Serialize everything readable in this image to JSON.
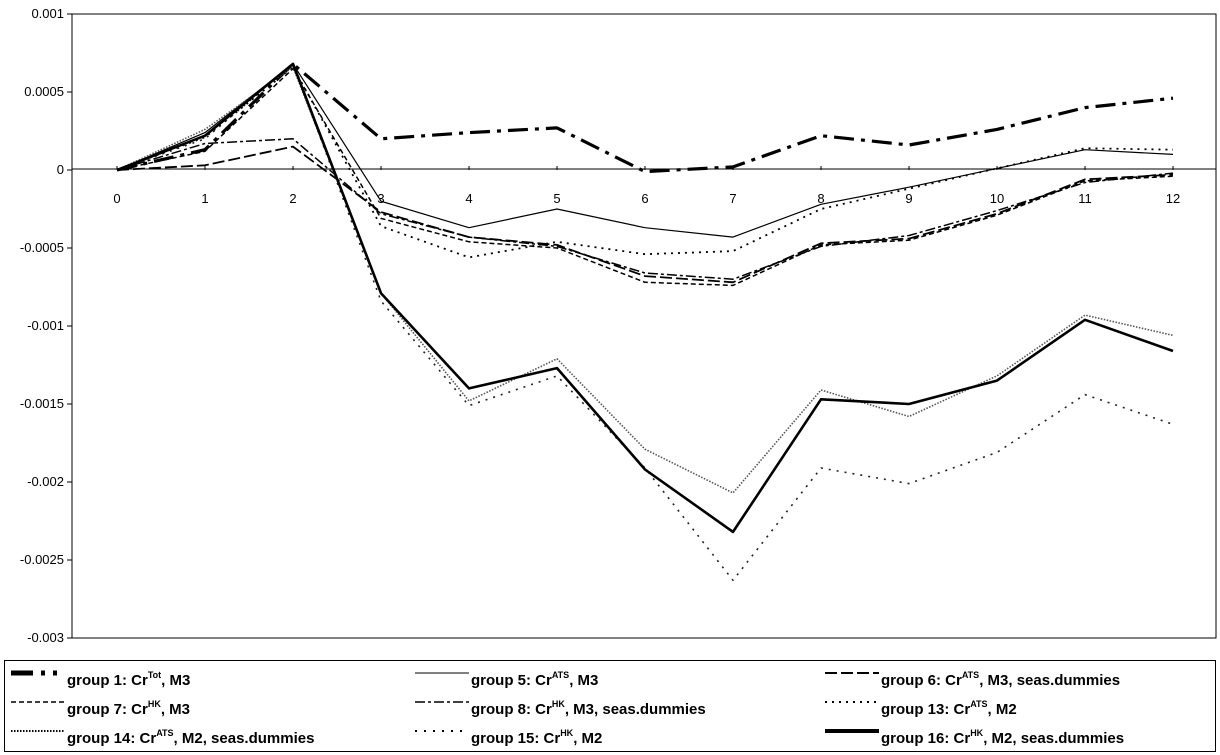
{
  "chart_data": {
    "type": "line",
    "title": "",
    "xlabel": "",
    "ylabel": "",
    "x": [
      0,
      1,
      2,
      3,
      4,
      5,
      6,
      7,
      8,
      9,
      10,
      11,
      12
    ],
    "x_tick_labels": [
      "0",
      "1",
      "2",
      "3",
      "4",
      "5",
      "6",
      "7",
      "8",
      "9",
      "10",
      "11",
      "12"
    ],
    "ylim": [
      -0.003,
      0.001
    ],
    "y_ticks": [
      0.001,
      0.0005,
      0,
      -0.0005,
      -0.001,
      -0.0015,
      -0.002,
      -0.0025,
      -0.003
    ],
    "y_tick_labels": [
      "0.001",
      "0.0005",
      "0",
      "-0.0005",
      "-0.001",
      "-0.0015",
      "-0.002",
      "-0.0025",
      "-0.003"
    ],
    "grid": false,
    "legend_position": "bottom",
    "series": [
      {
        "name": "group 1: Cr",
        "sup": "Tot",
        "suffix": ", M3",
        "style": "heavy-dash-dot",
        "values": [
          0,
          0.00013,
          0.00068,
          0.0002,
          0.00024,
          0.00027,
          -1e-05,
          2e-05,
          0.00022,
          0.00016,
          0.00026,
          0.0004,
          0.00046
        ]
      },
      {
        "name": "group 5: Cr",
        "sup": "ATS",
        "suffix": ", M3",
        "style": "thin-solid",
        "values": [
          0,
          0.00024,
          0.00068,
          -0.0002,
          -0.00037,
          -0.00025,
          -0.00037,
          -0.00043,
          -0.00022,
          -0.00011,
          1e-05,
          0.00013,
          0.0001
        ]
      },
      {
        "name": "group 6: Cr",
        "sup": "ATS",
        "suffix": ", M3, seas.dummies",
        "style": "long-dash",
        "values": [
          0,
          3e-05,
          0.00015,
          -0.00027,
          -0.00043,
          -0.00048,
          -0.00068,
          -0.00072,
          -0.00047,
          -0.00044,
          -0.00028,
          -6e-05,
          -3e-05
        ]
      },
      {
        "name": "group 7: Cr",
        "sup": "HK",
        "suffix": ", M3",
        "style": "short-dash",
        "values": [
          0,
          0.00012,
          0.00065,
          -0.00031,
          -0.00046,
          -0.0005,
          -0.00072,
          -0.00074,
          -0.00048,
          -0.00045,
          -0.00029,
          -7e-05,
          -4e-05
        ]
      },
      {
        "name": "group 8: Cr",
        "sup": "HK",
        "suffix": ", M3, seas.dummies",
        "style": "dash-dot",
        "values": [
          0,
          0.00017,
          0.0002,
          -0.00028,
          -0.00043,
          -0.00049,
          -0.00066,
          -0.0007,
          -0.00049,
          -0.00042,
          -0.00026,
          -8e-05,
          -2e-05
        ]
      },
      {
        "name": "group 13: Cr",
        "sup": "ATS",
        "suffix": ", M2",
        "style": "dotted",
        "values": [
          0,
          0.00021,
          0.00066,
          -0.00036,
          -0.00056,
          -0.00046,
          -0.00054,
          -0.00052,
          -0.00025,
          -0.00012,
          1e-05,
          0.00014,
          0.00013
        ]
      },
      {
        "name": "group 14: Cr",
        "sup": "ATS",
        "suffix": ", M2, seas.dummies",
        "style": "fine-dotted",
        "values": [
          0,
          0.00026,
          0.00066,
          -0.00079,
          -0.00148,
          -0.00121,
          -0.00179,
          -0.00207,
          -0.00141,
          -0.00158,
          -0.00132,
          -0.00093,
          -0.00106
        ]
      },
      {
        "name": "group 15: Cr",
        "sup": "HK",
        "suffix": ", M2",
        "style": "sparse-dotted",
        "values": [
          0,
          0.0002,
          0.00068,
          -0.00084,
          -0.00151,
          -0.00132,
          -0.00191,
          -0.00263,
          -0.00191,
          -0.00201,
          -0.00181,
          -0.00144,
          -0.00163
        ]
      },
      {
        "name": "group 16: Cr",
        "sup": "HK",
        "suffix": ", M2, seas.dummies",
        "style": "heavy-solid",
        "values": [
          0,
          0.00022,
          0.00068,
          -0.00079,
          -0.0014,
          -0.00127,
          -0.00192,
          -0.00232,
          -0.00147,
          -0.0015,
          -0.00135,
          -0.00096,
          -0.00116
        ]
      }
    ]
  }
}
